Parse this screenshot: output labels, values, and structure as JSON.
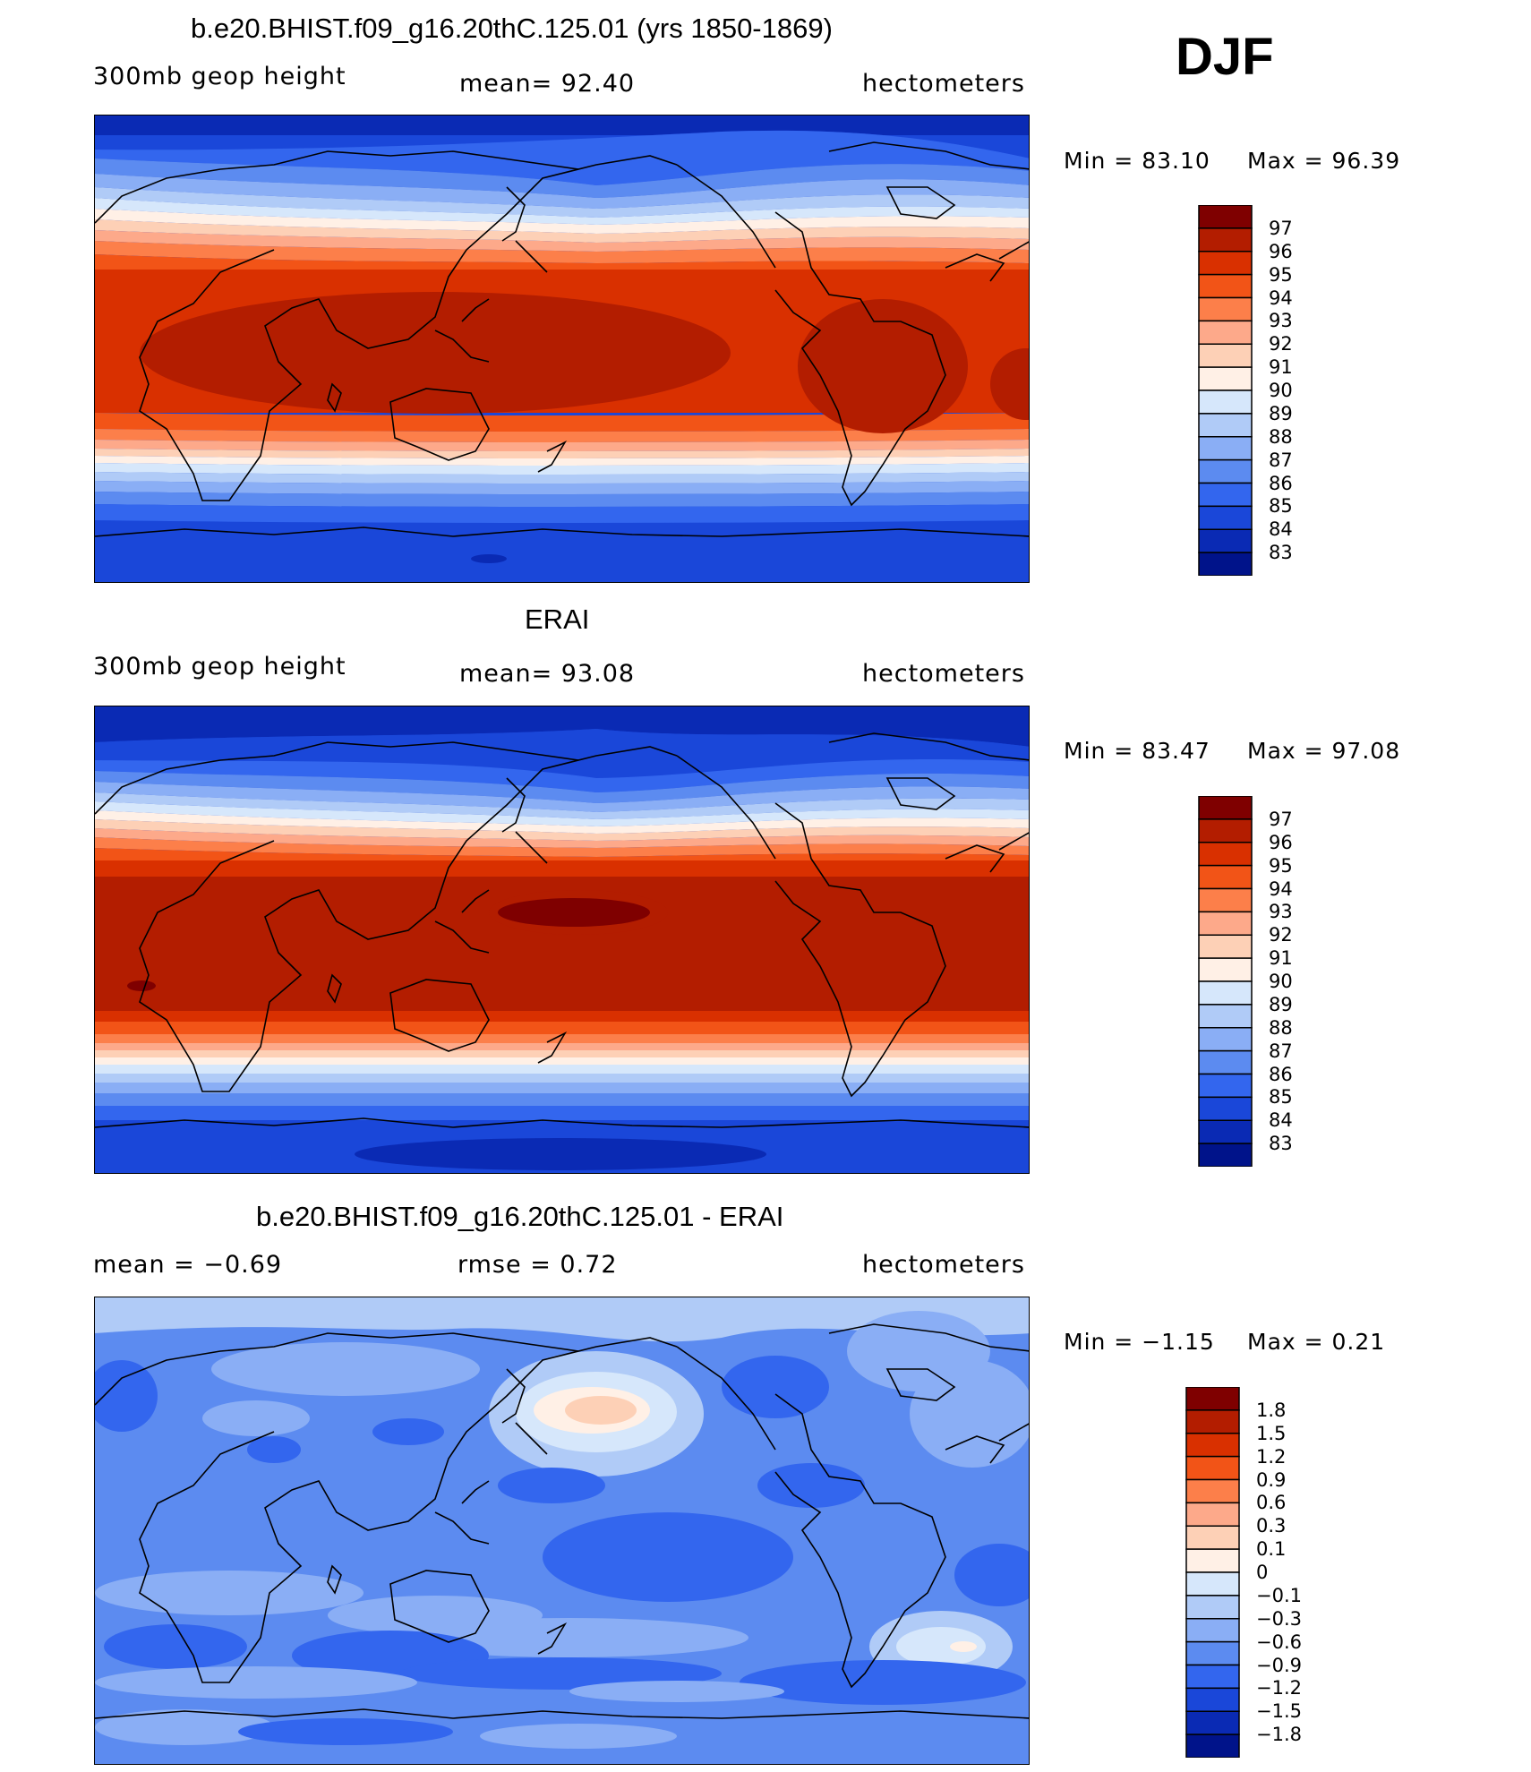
{
  "season": "DJF",
  "units": "hectometers",
  "panels": [
    {
      "title": "b.e20.BHIST.f09_g16.20thC.125.01 (yrs 1850-1869)",
      "variable": "300mb  geop  height",
      "mean_text": "mean=   92.40",
      "units": "hectometers",
      "min_text": "Min  =    83.10",
      "max_text": "Max  =    96.39"
    },
    {
      "title": "ERAI",
      "variable": "300mb  geop  height",
      "mean_text": "mean=   93.08",
      "units": "hectometers",
      "min_text": "Min  =    83.47",
      "max_text": "Max  =    97.08"
    },
    {
      "title": "b.e20.BHIST.f09_g16.20thC.125.01 - ERAI",
      "mean_text": "mean  =    −0.69",
      "rmse_text": "rmse  =     0.72",
      "units": "hectometers",
      "min_text": "Min  =    −1.15",
      "max_text": "Max  =      0.21"
    }
  ],
  "colorbars": {
    "height": {
      "labels": [
        "97",
        "96",
        "95",
        "94",
        "93",
        "92",
        "91",
        "90",
        "89",
        "88",
        "87",
        "86",
        "85",
        "84",
        "83"
      ],
      "colors": [
        "#7f0000",
        "#b31d00",
        "#d93000",
        "#f25417",
        "#fc7f4a",
        "#fda98a",
        "#fdd0b6",
        "#fff0e6",
        "#d6e7fb",
        "#b0cbf7",
        "#8aaef5",
        "#5c8bf0",
        "#3366ee",
        "#1a47d9",
        "#0a2ab4",
        "#00138a"
      ]
    },
    "diff": {
      "labels": [
        "1.8",
        "1.5",
        "1.2",
        "0.9",
        "0.6",
        "0.3",
        "0.1",
        "0",
        "−0.1",
        "−0.3",
        "−0.6",
        "−0.9",
        "−1.2",
        "−1.5",
        "−1.8"
      ],
      "colors": [
        "#7f0000",
        "#b31d00",
        "#d93000",
        "#f25417",
        "#fc7f4a",
        "#fda98a",
        "#fdd0b6",
        "#fff0e6",
        "#d6e7fb",
        "#b0cbf7",
        "#8aaef5",
        "#5c8bf0",
        "#3366ee",
        "#1a47d9",
        "#0a2ab4",
        "#00138a"
      ]
    }
  }
}
